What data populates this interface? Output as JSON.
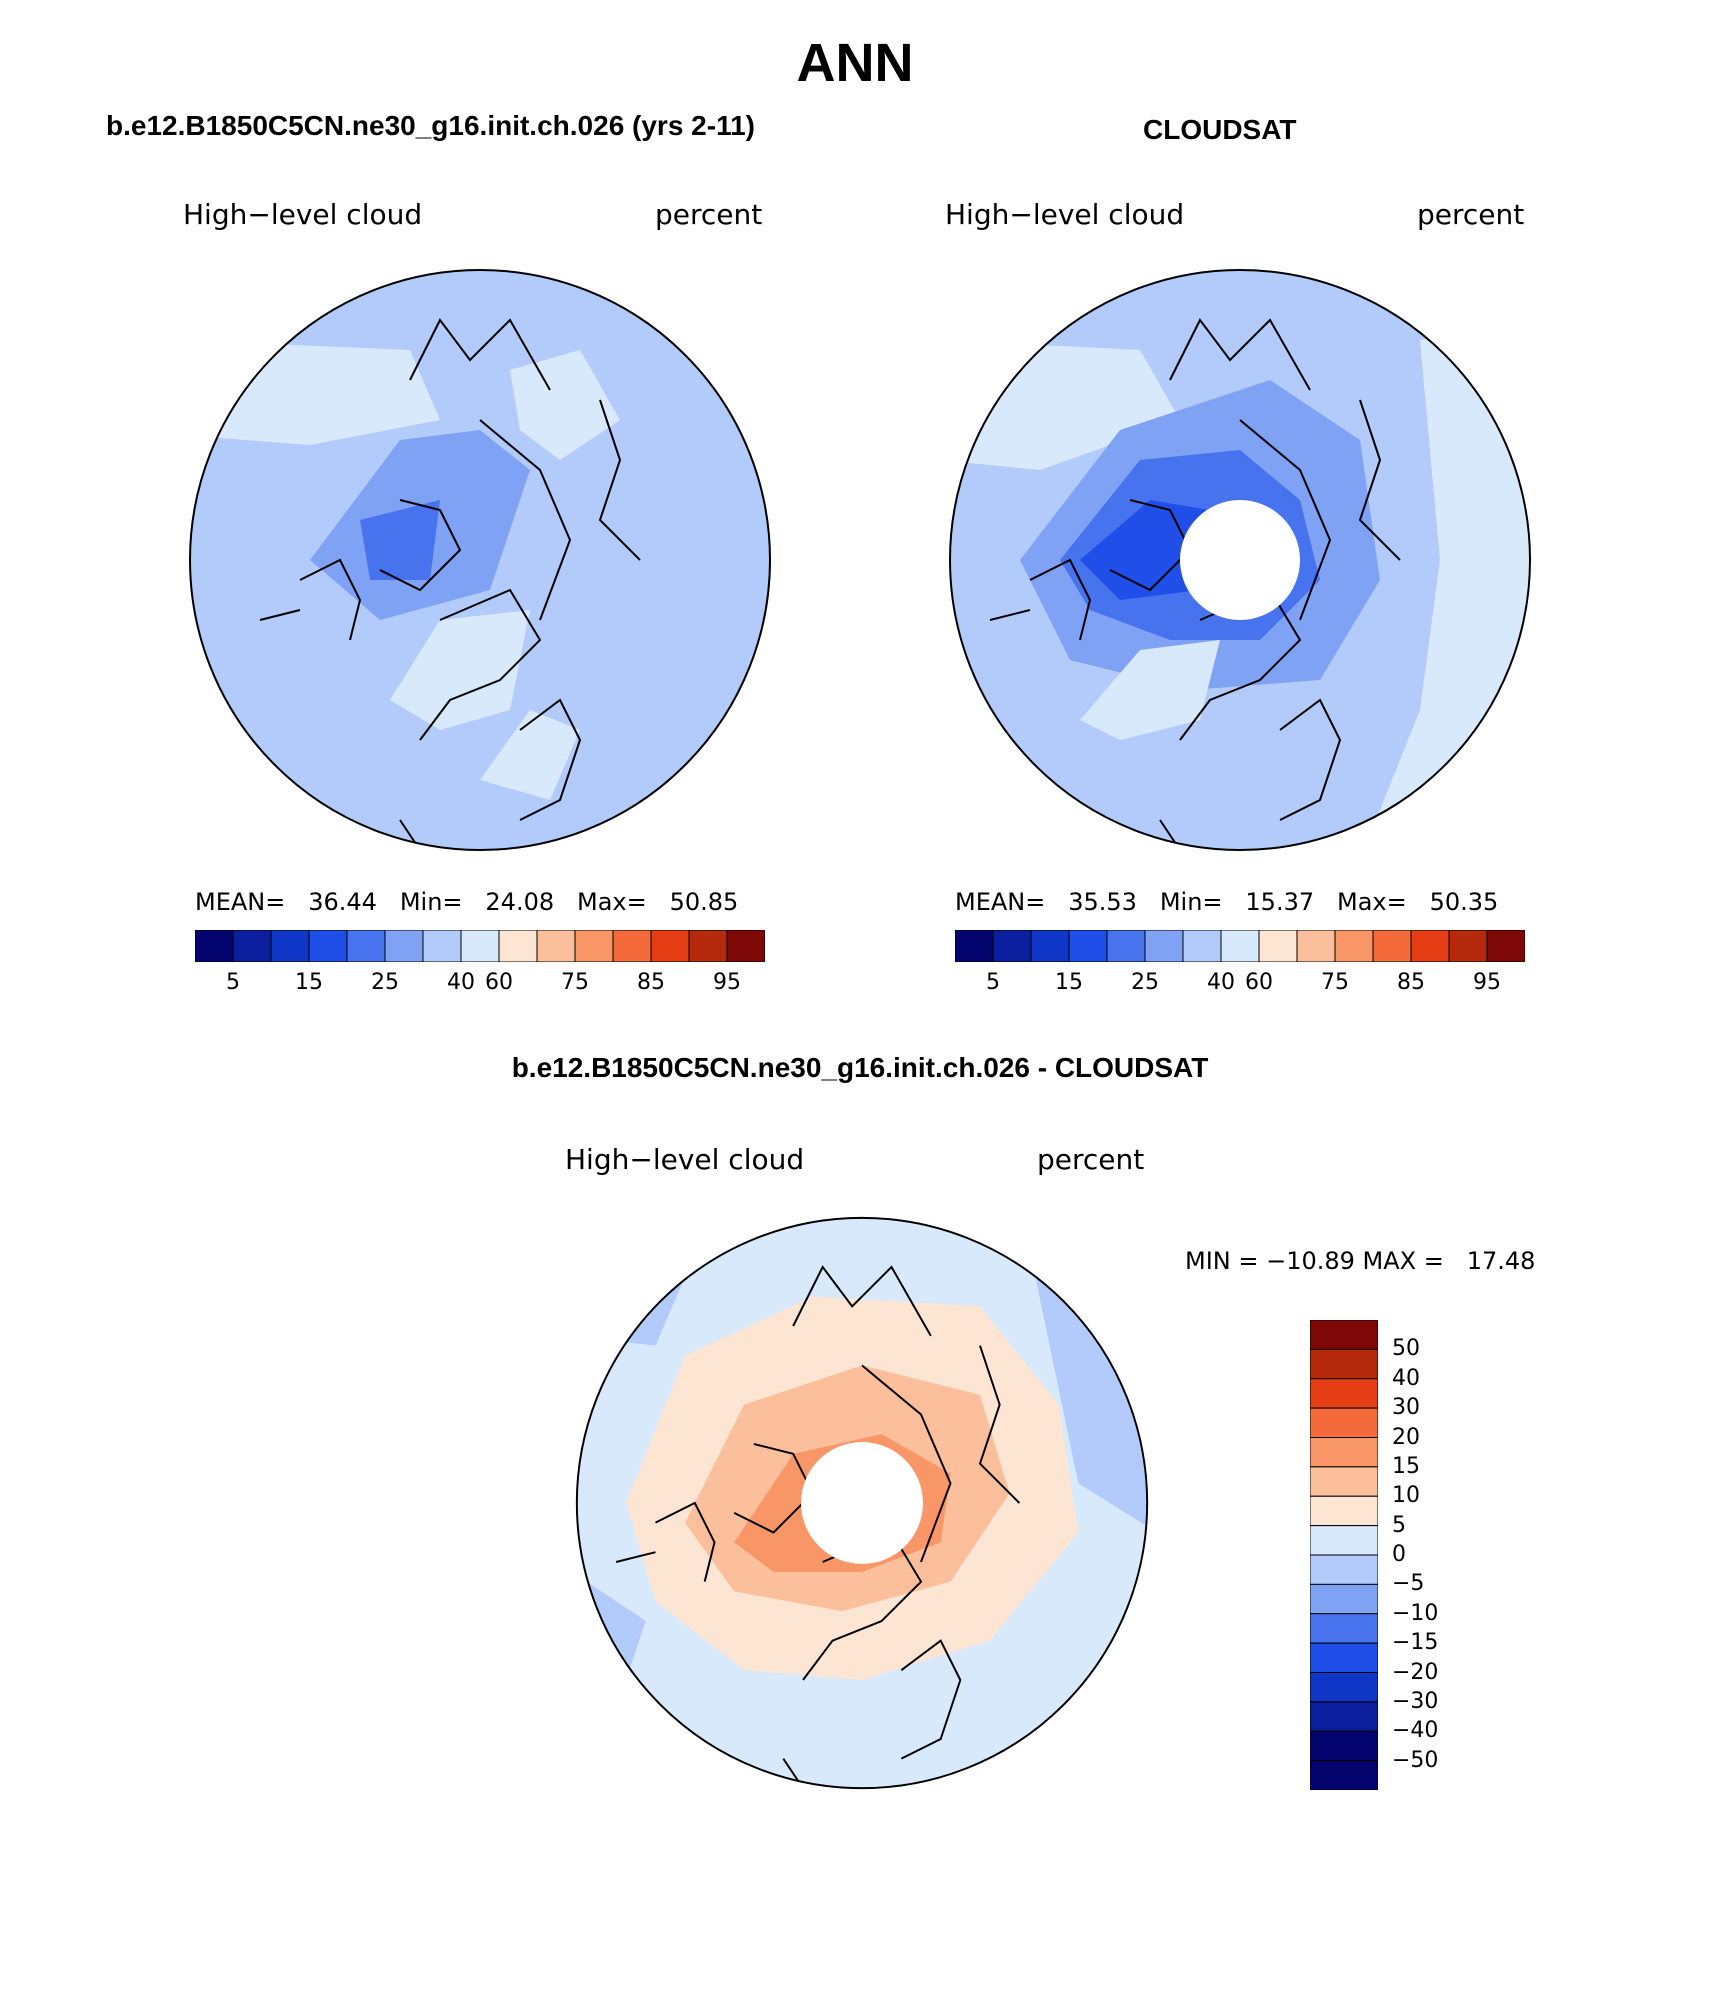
{
  "title": "ANN",
  "palette": [
    "#03036e",
    "#0a1e9e",
    "#1036c8",
    "#1f4fe8",
    "#4773ee",
    "#7fa2f5",
    "#b3cbfa",
    "#d9e9fc",
    "#fde5d3",
    "#fbbf9c",
    "#f89667",
    "#f46a3a",
    "#e53e14",
    "#b52a0c",
    "#7e0808"
  ],
  "panels": [
    {
      "title": "b.e12.B1850C5CN.ne30_g16.init.ch.026 (yrs 2-11)",
      "variable": "High−level cloud",
      "units": "percent",
      "stats": "MEAN=   36.44   Min=   24.08   Max=   50.85",
      "colorbar_ticks": [
        "5",
        "15",
        "25",
        "40",
        "60",
        "75",
        "85",
        "95"
      ]
    },
    {
      "title": "CLOUDSAT",
      "variable": "High−level cloud",
      "units": "percent",
      "stats": "MEAN=   35.53   Min=   15.37   Max=   50.35",
      "colorbar_ticks": [
        "5",
        "15",
        "25",
        "40",
        "60",
        "75",
        "85",
        "95"
      ]
    },
    {
      "title": "b.e12.B1850C5CN.ne30_g16.init.ch.026 - CLOUDSAT",
      "variable": "High−level cloud",
      "units": "percent",
      "stats": "MIN = −10.89 MAX =   17.48",
      "colorbar_ticks": [
        "50",
        "40",
        "30",
        "20",
        "15",
        "10",
        "5",
        "0",
        "−5",
        "−10",
        "−15",
        "−20",
        "−30",
        "−40",
        "−50"
      ]
    }
  ]
}
